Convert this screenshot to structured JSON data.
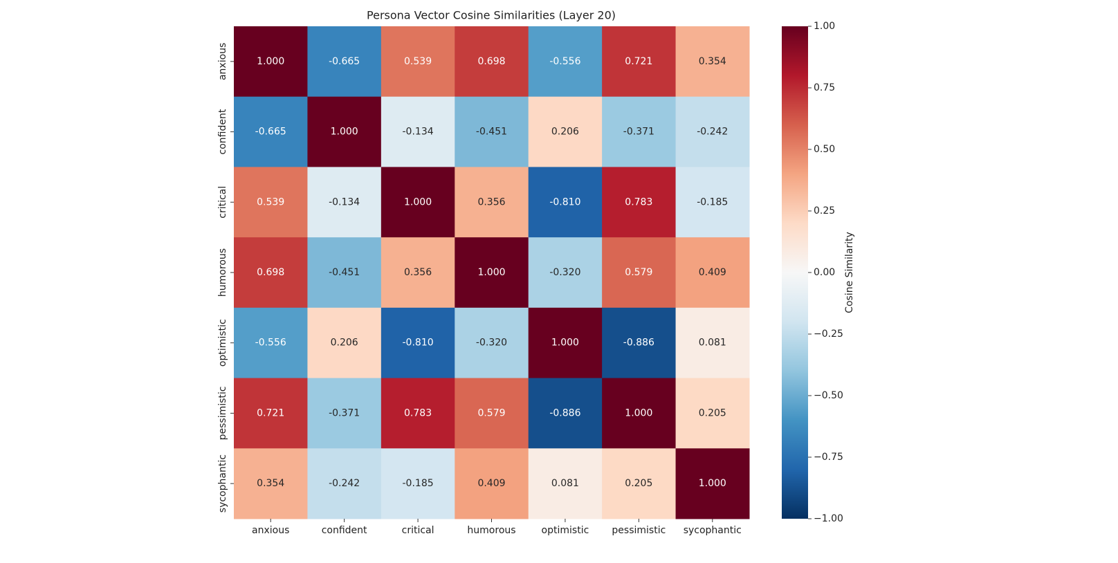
{
  "chart_data": {
    "type": "heatmap",
    "title": "Persona Vector Cosine Similarities (Layer 20)",
    "x_categories": [
      "anxious",
      "confident",
      "critical",
      "humorous",
      "optimistic",
      "pessimistic",
      "sycophantic"
    ],
    "y_categories": [
      "anxious",
      "confident",
      "critical",
      "humorous",
      "optimistic",
      "pessimistic",
      "sycophantic"
    ],
    "values": [
      [
        1,
        -0.665,
        0.539,
        0.698,
        -0.556,
        0.721,
        0.354
      ],
      [
        -0.665,
        1,
        -0.134,
        -0.451,
        0.206,
        -0.371,
        -0.242
      ],
      [
        0.539,
        -0.134,
        1,
        0.356,
        -0.81,
        0.783,
        -0.185
      ],
      [
        0.698,
        -0.451,
        0.356,
        1,
        -0.32,
        0.579,
        0.409
      ],
      [
        -0.556,
        0.206,
        -0.81,
        -0.32,
        1,
        -0.886,
        0.081
      ],
      [
        0.721,
        -0.371,
        0.783,
        0.579,
        -0.886,
        1,
        0.205
      ],
      [
        0.354,
        -0.242,
        -0.185,
        0.409,
        0.081,
        0.205,
        1
      ]
    ],
    "value_labels": [
      [
        "1.000",
        "-0.665",
        "0.539",
        "0.698",
        "-0.556",
        "0.721",
        "0.354"
      ],
      [
        "-0.665",
        "1.000",
        "-0.134",
        "-0.451",
        "0.206",
        "-0.371",
        "-0.242"
      ],
      [
        "0.539",
        "-0.134",
        "1.000",
        "0.356",
        "-0.810",
        "0.783",
        "-0.185"
      ],
      [
        "0.698",
        "-0.451",
        "0.356",
        "1.000",
        "-0.320",
        "0.579",
        "0.409"
      ],
      [
        "-0.556",
        "0.206",
        "-0.810",
        "-0.320",
        "1.000",
        "-0.886",
        "0.081"
      ],
      [
        "0.721",
        "-0.371",
        "0.783",
        "0.579",
        "-0.886",
        "1.000",
        "0.205"
      ],
      [
        "0.354",
        "-0.242",
        "-0.185",
        "0.409",
        "0.081",
        "0.205",
        "1.000"
      ]
    ],
    "colormap": "RdBu_r",
    "clim": [
      -1,
      1
    ],
    "cticks": [
      {
        "value": -1,
        "label": "−1.00"
      },
      {
        "value": -0.75,
        "label": "−0.75"
      },
      {
        "value": -0.5,
        "label": "−0.50"
      },
      {
        "value": -0.25,
        "label": "−0.25"
      },
      {
        "value": 0,
        "label": "0.00"
      },
      {
        "value": 0.25,
        "label": "0.25"
      },
      {
        "value": 0.5,
        "label": "0.50"
      },
      {
        "value": 0.75,
        "label": "0.75"
      },
      {
        "value": 1,
        "label": "1.00"
      }
    ],
    "colorbar_label": "Cosine Similarity"
  }
}
